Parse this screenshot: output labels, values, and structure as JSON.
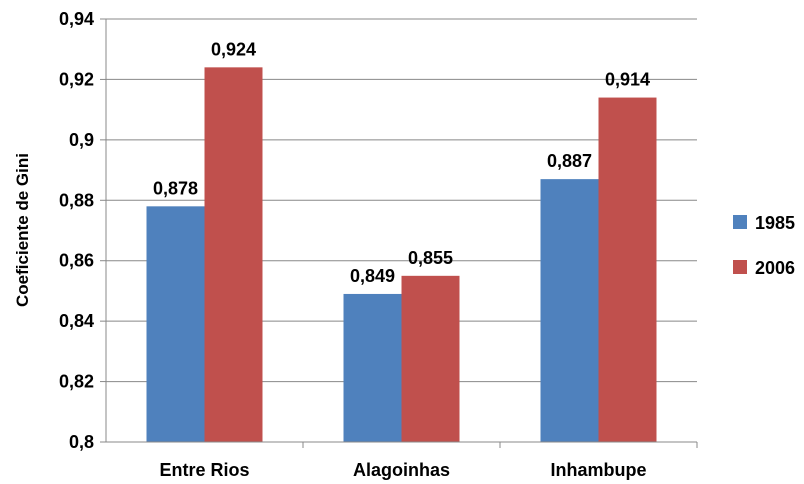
{
  "chart_data": {
    "type": "bar",
    "categories": [
      "Entre Rios",
      "Alagoinhas",
      "Inhambupe"
    ],
    "series": [
      {
        "name": "1985",
        "values": [
          0.878,
          0.849,
          0.887
        ],
        "labels": [
          "0,878",
          "0,849",
          "0,887"
        ],
        "color": "#4F81BD"
      },
      {
        "name": "2006",
        "values": [
          0.924,
          0.855,
          0.914
        ],
        "labels": [
          "0,924",
          "0,855",
          "0,914"
        ],
        "color": "#C0504D"
      }
    ],
    "ylabel": "Coeficiente de Gini",
    "xlabel": "",
    "ylim": [
      0.8,
      0.94
    ],
    "yticks": [
      0.8,
      0.82,
      0.84,
      0.86,
      0.88,
      0.9,
      0.92,
      0.94
    ],
    "ytick_labels": [
      "0,8",
      "0,82",
      "0,84",
      "0,86",
      "0,88",
      "0,9",
      "0,92",
      "0,94"
    ],
    "grid": true,
    "legend_position": "right"
  }
}
